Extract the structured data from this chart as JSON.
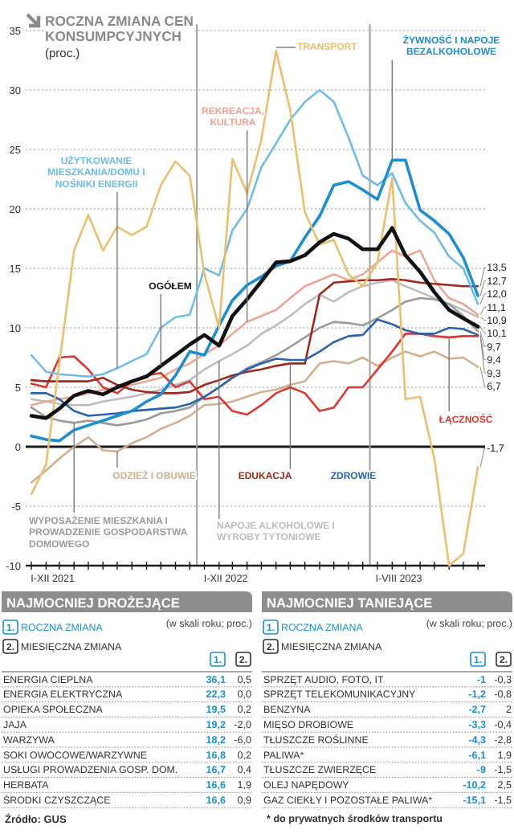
{
  "chart_data": [
    {
      "type": "line",
      "title": "ROCZNA ZMIANA CEN KONSUMPCYJNYCH",
      "subtitle": "(proc.)",
      "x": [
        "2021-01",
        "2021-02",
        "2021-03",
        "2021-04",
        "2021-05",
        "2021-06",
        "2021-07",
        "2021-08",
        "2021-09",
        "2021-10",
        "2021-11",
        "2021-12",
        "2022-01",
        "2022-02",
        "2022-03",
        "2022-04",
        "2022-05",
        "2022-06",
        "2022-07",
        "2022-08",
        "2022-09",
        "2022-10",
        "2022-11",
        "2022-12",
        "2023-01",
        "2023-02",
        "2023-03",
        "2023-04",
        "2023-05",
        "2023-06",
        "2023-07",
        "2023-08"
      ],
      "series": [
        {
          "name": "TRANSPORT",
          "color": "#ebbf6e",
          "values": [
            -4,
            -1.5,
            7,
            16.5,
            19.5,
            16.5,
            18.5,
            17.8,
            18.5,
            22,
            24,
            22.8,
            14.5,
            10,
            24.2,
            21.3,
            25.8,
            33.3,
            28.3,
            19.7,
            17,
            17.4,
            14.5,
            13.5,
            15.5,
            22.6,
            4,
            4.2,
            -1,
            -10,
            -9,
            -1.7
          ]
        },
        {
          "name": "ŻYWNOŚĆ I NAPOJE BEZALKOHOLOWE",
          "color": "#1b8fd2",
          "values": [
            0.9,
            0.6,
            0.5,
            1.4,
            1.8,
            2.2,
            2.6,
            3.0,
            3.8,
            4.4,
            6.0,
            8.0,
            7.7,
            10.2,
            12.3,
            13.6,
            14.3,
            15.2,
            15.6,
            17.6,
            19.4,
            22,
            22.3,
            21.6,
            20.8,
            24.1,
            24.1,
            19.9,
            19,
            17.9,
            15.9,
            12.7
          ]
        },
        {
          "name": "UŻYTKOWANIE MIESZKANIA/DOMU I NOŚNIKI ENERGII",
          "color": "#6fbde6",
          "values": [
            7.7,
            6.3,
            6.1,
            6.0,
            5.9,
            6.1,
            6.6,
            7.2,
            7.8,
            10.0,
            10.9,
            11.1,
            15.0,
            14.4,
            18.2,
            20,
            23.5,
            25.5,
            27.5,
            29,
            30,
            29,
            26,
            22.8,
            22,
            23,
            20.5,
            19,
            18,
            16,
            15,
            12.0
          ]
        },
        {
          "name": "REKREACJA, KULTURA",
          "color": "#eea593",
          "values": [
            3.5,
            3.8,
            4.0,
            4.2,
            4.5,
            4.8,
            5.0,
            5.2,
            5.5,
            5.8,
            6.5,
            7.0,
            7.8,
            8.5,
            9.5,
            10.5,
            11.0,
            11.5,
            12.5,
            13.5,
            14.0,
            14.5,
            14.0,
            14.5,
            15.5,
            16.5,
            16.0,
            16.5,
            14.0,
            12.5,
            12.0,
            11.1
          ]
        },
        {
          "name": "OGÓŁEM",
          "color": "#111111",
          "values": [
            2.6,
            2.4,
            3.2,
            4.3,
            4.7,
            4.4,
            5.0,
            5.5,
            5.9,
            6.8,
            7.7,
            8.6,
            9.4,
            8.5,
            11.0,
            12.4,
            13.9,
            15.5,
            15.6,
            16.1,
            17.2,
            17.9,
            17.5,
            16.6,
            16.6,
            18.4,
            16.1,
            14.7,
            13.0,
            11.5,
            10.8,
            10.1
          ]
        },
        {
          "name": "ODZIEŻ I OBUWIE",
          "color": "#cfb08f",
          "values": [
            -3,
            -2,
            -1,
            0,
            0.8,
            -0.3,
            -0.4,
            0.3,
            0.8,
            1.5,
            2.0,
            2.6,
            3.5,
            3.6,
            3.8,
            4.2,
            4.6,
            4.8,
            5.2,
            5.5,
            7.0,
            7.2,
            7.0,
            7.5,
            6.8,
            7.5,
            8.0,
            7.6,
            8.0,
            7.4,
            7.5,
            6.7
          ]
        },
        {
          "name": "WYPOSAŻENIE MIESZKANIA I PROWADZENIE GOSPODARSTWA DOMOWEGO",
          "color": "#9b9b9b",
          "values": [
            3.3,
            2.5,
            2.2,
            2.0,
            2.2,
            2.0,
            1.8,
            2.0,
            2.3,
            2.8,
            3.0,
            3.3,
            4.2,
            5.0,
            5.8,
            6.6,
            7.1,
            7.7,
            8.4,
            9.2,
            10.0,
            10.5,
            10.4,
            10.2,
            10.8,
            11.5,
            12.2,
            12.5,
            12.4,
            12.0,
            11.0,
            9.7
          ]
        },
        {
          "name": "NAPOJE ALKOHOLOWE I WYROBY TYTONIOWE",
          "color": "#bdbdbd",
          "values": [
            4.0,
            3.8,
            3.6,
            3.5,
            3.5,
            3.8,
            4.0,
            4.2,
            4.5,
            4.8,
            5.2,
            5.6,
            6.5,
            7.2,
            7.8,
            8.5,
            9.5,
            10.2,
            11.0,
            12.0,
            12.8,
            12.2,
            13.0,
            13.5,
            13.8,
            14.0,
            13.5,
            13.0,
            12.5,
            12.0,
            11.5,
            10.9
          ]
        },
        {
          "name": "EDUKACJA",
          "color": "#9e2a1e",
          "values": [
            5.6,
            5.5,
            5.5,
            5.5,
            5.5,
            5.8,
            5.2,
            4.8,
            4.6,
            4.5,
            4.5,
            4.6,
            5.2,
            5.6,
            6.0,
            6.3,
            6.5,
            6.8,
            7.0,
            7.0,
            12.8,
            13.8,
            13.9,
            14.0,
            14.0,
            14.1,
            14.0,
            13.8,
            13.7,
            13.6,
            13.5,
            13.5
          ]
        },
        {
          "name": "ZDROWIE",
          "color": "#2a62ad",
          "values": [
            4.5,
            4.5,
            4.0,
            3.0,
            2.6,
            2.7,
            2.8,
            3.0,
            3.1,
            3.2,
            3.3,
            3.6,
            4.2,
            5.0,
            5.8,
            6.5,
            7.0,
            7.4,
            7.3,
            7.3,
            8.0,
            8.8,
            9.3,
            9.4,
            10.7,
            10.3,
            9.8,
            9.5,
            9.5,
            10.0,
            9.9,
            9.4
          ]
        },
        {
          "name": "ŁĄCZNOŚĆ",
          "color": "#d9392f",
          "values": [
            5.3,
            5.0,
            7.5,
            7.6,
            6.5,
            5.0,
            4.5,
            5.5,
            6.0,
            6.2,
            5.0,
            5.5,
            4.0,
            4.2,
            3.0,
            2.7,
            3.5,
            4.5,
            5.0,
            4.5,
            3.0,
            3.3,
            5.0,
            5.0,
            6.5,
            8.0,
            9.5,
            9.5,
            9.3,
            9.2,
            9.3,
            9.3
          ]
        }
      ],
      "xlim": [
        "2020-12-20",
        "2023-08-16"
      ],
      "xticks": [
        {
          "value": "2021-01",
          "label": null
        },
        {
          "value": "2021-02",
          "label": null
        },
        {
          "value": "2021-02-15",
          "label": "I-XII 2021"
        },
        {
          "value": "2021-03",
          "label": null
        },
        {
          "value": "2021-04",
          "label": null
        },
        {
          "value": "2021-05",
          "label": null
        },
        {
          "value": "2021-06",
          "label": null
        },
        {
          "value": "2021-07",
          "label": null
        },
        {
          "value": "2021-08",
          "label": null
        },
        {
          "value": "2021-09",
          "label": null
        },
        {
          "value": "2021-10",
          "label": null
        },
        {
          "value": "2021-11",
          "label": null
        },
        {
          "value": "2021-12",
          "label": null
        },
        {
          "value": "2022-01",
          "label": null
        },
        {
          "value": "2022-02",
          "label": null
        },
        {
          "value": "2022-02-15",
          "label": "I-XII 2022"
        },
        {
          "value": "2022-03",
          "label": null
        },
        {
          "value": "2022-04",
          "label": null
        },
        {
          "value": "2022-05",
          "label": null
        },
        {
          "value": "2022-06",
          "label": null
        },
        {
          "value": "2022-07",
          "label": null
        },
        {
          "value": "2022-08",
          "label": null
        },
        {
          "value": "2022-09",
          "label": null
        },
        {
          "value": "2022-10",
          "label": null
        },
        {
          "value": "2022-11",
          "label": null
        },
        {
          "value": "2022-12",
          "label": null
        },
        {
          "value": "2023-01",
          "label": null
        },
        {
          "value": "2023-02",
          "label": null
        },
        {
          "value": "2023-02-15",
          "label": "I-VIII 2023"
        },
        {
          "value": "2023-03",
          "label": null
        },
        {
          "value": "2023-04",
          "label": null
        },
        {
          "value": "2023-05",
          "label": null
        },
        {
          "value": "2023-06",
          "label": null
        },
        {
          "value": "2023-07",
          "label": null
        },
        {
          "value": "2023-08",
          "label": null
        }
      ],
      "ylim": [
        -10,
        35
      ],
      "yticks": [
        -10,
        -5,
        0,
        5,
        10,
        15,
        20,
        25,
        30,
        35
      ],
      "grid": "y",
      "ref_lines": [
        {
          "axis": "y",
          "value": 0,
          "color": "#1a1a1a"
        },
        {
          "axis": "x",
          "value": "2021-12-16",
          "color": "#a0a0a0"
        },
        {
          "axis": "x",
          "value": "2022-12-16",
          "color": "#a0a0a0"
        }
      ],
      "annotations": [
        {
          "text": "13,5",
          "x": "2023-08",
          "y": 13.5
        },
        {
          "text": "12,7",
          "x": "2023-08",
          "y": 12.7
        },
        {
          "text": "12,0",
          "x": "2023-08",
          "y": 12.0
        },
        {
          "text": "11,1",
          "x": "2023-08",
          "y": 11.1
        },
        {
          "text": "10,9",
          "x": "2023-08",
          "y": 10.9
        },
        {
          "text": "10,1",
          "x": "2023-08",
          "y": 10.1
        },
        {
          "text": "9,7",
          "x": "2023-08",
          "y": 9.7
        },
        {
          "text": "9,4",
          "x": "2023-08",
          "y": 9.4
        },
        {
          "text": "9,3",
          "x": "2023-08",
          "y": 9.3
        },
        {
          "text": "6,7",
          "x": "2023-08",
          "y": 6.7
        },
        {
          "text": "-1,7",
          "x": "2023-08",
          "y": -1.7
        },
        "Źródło: GUS"
      ]
    },
    {
      "type": "other",
      "title": "NAJMOCNIEJ DROŻEJĄCE",
      "categories": [
        "ENERGIA CIEPLNA",
        "ENERGIA ELEKTRYCZNA",
        "OPIEKA SPOŁECZNA",
        "JAJA",
        "WARZYWA",
        "SOKI OWOCOWE/WARZYWNE",
        "USŁUGI PROWADZENIA GOSP. DOM.",
        "HERBATA",
        "ŚRODKI CZYSZCZĄCE"
      ],
      "series": [
        {
          "name": "ROCZNA ZMIANA",
          "color": "#1b8fd2",
          "values": [
            36.1,
            22.3,
            19.5,
            19.2,
            18.2,
            16.8,
            16.7,
            16.6,
            16.6
          ],
          "value_labels": [
            "36,1",
            "22,3",
            "19,5",
            "19,2",
            "18,2",
            "16,8",
            "16,7",
            "16,6",
            "16,6"
          ]
        },
        {
          "name": "MIESIĘCZNA ZMIANA",
          "color": "#333333",
          "values": [
            0.5,
            0.0,
            0.2,
            -2.0,
            -6.0,
            0.2,
            0.4,
            1.9,
            0.9
          ],
          "value_labels": [
            "0,5",
            "0,0",
            "0,2",
            "-2,0",
            "-6,0",
            "0,2",
            "0,4",
            "1,9",
            "0,9"
          ]
        }
      ],
      "annotations": [
        "(w skali roku; proc.)",
        "1.",
        "2."
      ]
    },
    {
      "type": "other",
      "title": "NAJMOCNIEJ TANIEJĄCE",
      "categories": [
        "SPRZĘT AUDIO, FOTO, IT",
        "SPRZĘT TELEKOMUNIKACYJNY",
        "BENZYNA",
        "MIĘSO DROBIOWE",
        "TŁUSZCZE ROŚLINNE",
        "PALIWA*",
        "TŁUSZCZE ZWIERZĘCE",
        "OLEJ NAPĘDOWY",
        "GAZ CIEKŁY I POZOSTAŁE PALIWA*"
      ],
      "series": [
        {
          "name": "ROCZNA ZMIANA",
          "color": "#1b8fd2",
          "values": [
            -1,
            -1.2,
            -2.7,
            -3.3,
            -4.3,
            -6.1,
            -9,
            -10.2,
            -15.1
          ],
          "value_labels": [
            "-1",
            "-1,2",
            "-2,7",
            "-3,3",
            "-4,3",
            "-6,1",
            "-9",
            "-10,2",
            "-15,1"
          ]
        },
        {
          "name": "MIESIĘCZNA ZMIANA",
          "color": "#333333",
          "values": [
            -0.3,
            -0.8,
            2,
            -0.4,
            -2.8,
            1.9,
            -1.5,
            2.5,
            -1.5
          ],
          "value_labels": [
            "-0,3",
            "-0,8",
            "2",
            "-0,4",
            "-2,8",
            "1,9",
            "-1,5",
            "2,5",
            "-1,5"
          ]
        }
      ],
      "annotations": [
        "(w skali roku; proc.)",
        "1.",
        "2.",
        "* do prywatnych środków transportu"
      ]
    }
  ]
}
